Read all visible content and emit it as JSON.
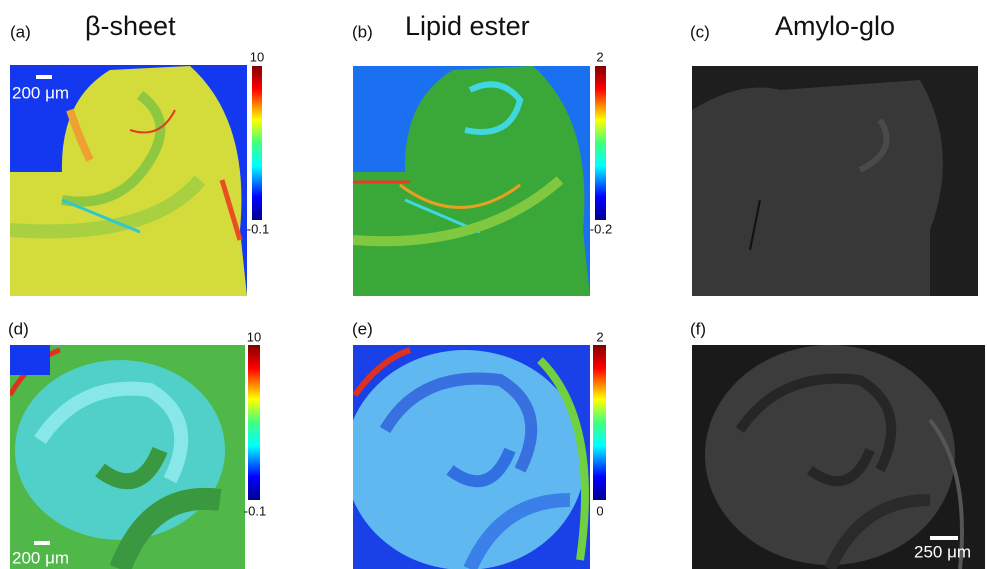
{
  "panels": [
    {
      "label": "(a)",
      "title": "β-sheet",
      "colorbar": {
        "max": 10,
        "min": -0.1
      },
      "scale_bar": "200 μm"
    },
    {
      "label": "(b)",
      "title": "Lipid ester",
      "colorbar": {
        "max": 2,
        "min": -0.2
      }
    },
    {
      "label": "(c)",
      "title": "Amylo-glo"
    },
    {
      "label": "(d)",
      "colorbar": {
        "max": 10,
        "min": -0.1
      },
      "scale_bar": "200 μm"
    },
    {
      "label": "(e)",
      "colorbar": {
        "max": 2,
        "min": 0
      }
    },
    {
      "label": "(f)",
      "scale_bar": "250 μm"
    }
  ]
}
